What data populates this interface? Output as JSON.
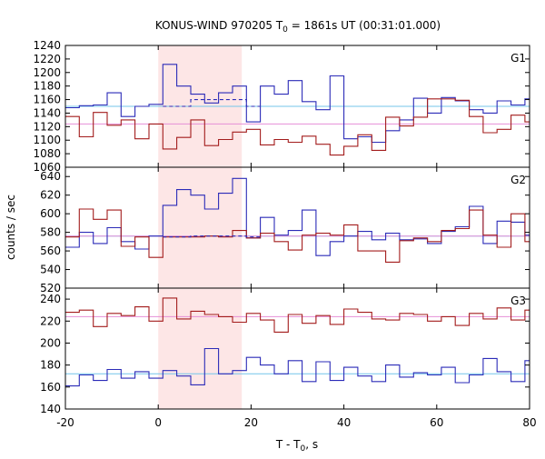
{
  "title_main": "KONUS-WIND 970205 T",
  "title_sub": "0",
  "title_rest": " = 1861s UT (00:31:01.000)",
  "xlabel_main": "T - T",
  "xlabel_sub": "0",
  "xlabel_rest": ", s",
  "ylabel": "counts / sec",
  "colors": {
    "blue": "#2b2bb8",
    "red": "#a31c1c",
    "cyan": "#74c6ea",
    "pink": "#e68fd7",
    "shade": "#fde6e6"
  },
  "chart_data": {
    "type": "line",
    "line_shape": "step",
    "x_range": [
      -20,
      80
    ],
    "x_ticks": [
      -20,
      0,
      20,
      40,
      60,
      80
    ],
    "shaded_interval": [
      0,
      18
    ],
    "bin_edges": [
      -20,
      -17,
      -14,
      -11,
      -8,
      -5,
      -2,
      1,
      4,
      7,
      10,
      13,
      16,
      19,
      22,
      25,
      28,
      31,
      34,
      37,
      40,
      43,
      46,
      49,
      52,
      55,
      58,
      61,
      64,
      67,
      70,
      73,
      76,
      79,
      82
    ],
    "panels": [
      {
        "name": "G1",
        "ylim": [
          1060,
          1240
        ],
        "yticks": [
          1060,
          1080,
          1100,
          1120,
          1140,
          1160,
          1180,
          1200,
          1220,
          1240
        ],
        "background": [
          {
            "level": 1150,
            "color": "cyan"
          },
          {
            "level": 1124,
            "color": "pink"
          }
        ],
        "series": [
          {
            "color": "blue",
            "values": [
              1148,
              1151,
              1152,
              1170,
              1135,
              1150,
              1153,
              1212,
              1180,
              1168,
              1155,
              1170,
              1180,
              1127,
              1180,
              1168,
              1188,
              1157,
              1145,
              1195,
              1102,
              1105,
              1097,
              1114,
              1130,
              1162,
              1140,
              1163,
              1158,
              1145,
              1140,
              1158,
              1152,
              1161
            ]
          },
          {
            "color": "red",
            "values": [
              1135,
              1105,
              1141,
              1122,
              1130,
              1102,
              1124,
              1087,
              1104,
              1130,
              1092,
              1101,
              1112,
              1116,
              1093,
              1101,
              1097,
              1106,
              1094,
              1078,
              1091,
              1108,
              1085,
              1134,
              1121,
              1134,
              1161,
              1161,
              1159,
              1135,
              1111,
              1116,
              1137,
              1127
            ]
          },
          {
            "color": "blue",
            "dash": true,
            "values": [
              null,
              null,
              null,
              null,
              null,
              null,
              null,
              1150,
              1150,
              1160,
              1160,
              1160,
              1160,
              1150
            ]
          }
        ]
      },
      {
        "name": "G2",
        "ylim": [
          520,
          650
        ],
        "yticks": [
          520,
          540,
          560,
          580,
          600,
          620,
          640
        ],
        "background": [
          {
            "level": 576,
            "color": "cyan"
          },
          {
            "level": 576,
            "color": "pink"
          }
        ],
        "series": [
          {
            "color": "blue",
            "values": [
              564,
              580,
              568,
              585,
              570,
              562,
              576,
              609,
              626,
              620,
              605,
              622,
              638,
              574,
              596,
              577,
              582,
              604,
              555,
              570,
              576,
              581,
              572,
              579,
              572,
              573,
              568,
              581,
              586,
              608,
              568,
              592,
              591,
              577
            ]
          },
          {
            "color": "red",
            "values": [
              575,
              605,
              594,
              604,
              565,
              575,
              553,
              575,
              575,
              575,
              576,
              575,
              582,
              574,
              579,
              570,
              561,
              577,
              579,
              577,
              588,
              560,
              560,
              548,
              571,
              574,
              570,
              582,
              584,
              604,
              577,
              564,
              600,
              570
            ]
          },
          {
            "color": "blue",
            "dash": true,
            "values": [
              null,
              null,
              null,
              null,
              null,
              null,
              null,
              575,
              575,
              576,
              576,
              576,
              576,
              575
            ]
          }
        ]
      },
      {
        "name": "G3",
        "ylim": [
          140,
          250
        ],
        "yticks": [
          140,
          160,
          180,
          200,
          220,
          240
        ],
        "background": [
          {
            "level": 172,
            "color": "cyan"
          },
          {
            "level": 224,
            "color": "pink"
          }
        ],
        "series": [
          {
            "color": "blue",
            "values": [
              161,
              171,
              166,
              176,
              168,
              174,
              168,
              175,
              170,
              162,
              195,
              172,
              175,
              187,
              180,
              172,
              184,
              165,
              183,
              166,
              178,
              170,
              165,
              180,
              169,
              173,
              171,
              178,
              164,
              171,
              186,
              174,
              165,
              184
            ]
          },
          {
            "color": "red",
            "values": [
              228,
              230,
              215,
              227,
              225,
              233,
              220,
              241,
              222,
              229,
              226,
              224,
              219,
              227,
              221,
              210,
              226,
              218,
              225,
              217,
              231,
              228,
              222,
              221,
              227,
              226,
              220,
              224,
              216,
              227,
              222,
              232,
              221,
              230
            ]
          }
        ]
      }
    ]
  }
}
